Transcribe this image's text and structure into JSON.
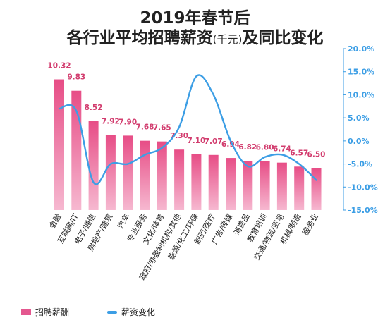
{
  "chart_data": {
    "type": "bar",
    "title": "2019年春节后",
    "subtitle_main": "各行业平均招聘薪资",
    "subtitle_unit": "(千元)",
    "subtitle_tail": "及同比变化",
    "categories": [
      "金融",
      "互联网/IT",
      "电子/通信",
      "房地产/建筑",
      "汽车",
      "专业服务",
      "文化/体育",
      "政府/非盈利机构/其他",
      "能源/化工/环保",
      "制药/医疗",
      "广告/传媒",
      "消费品",
      "教育培训",
      "交通/物流/贸易",
      "机械/制造",
      "服务业"
    ],
    "series": [
      {
        "name": "招聘薪酬",
        "axis": "left",
        "type": "bar",
        "values": [
          10.32,
          9.83,
          8.52,
          7.92,
          7.9,
          7.68,
          7.65,
          7.3,
          7.1,
          7.07,
          6.94,
          6.82,
          6.8,
          6.74,
          6.57,
          6.5
        ],
        "labels": [
          "10.32",
          "9.83",
          "8.52",
          "7.92",
          "7.90",
          "7.68",
          "7.65",
          "7.30",
          "7.10",
          "7.07",
          "6.94",
          "6.82",
          "6.80",
          "6.74",
          "6.57",
          "6.50"
        ]
      },
      {
        "name": "薪资变化",
        "axis": "right",
        "type": "line",
        "values": [
          7.0,
          6.5,
          -9.0,
          -5.0,
          -5.0,
          -3.0,
          -1.5,
          3.0,
          14.0,
          10.0,
          0.0,
          -5.5,
          -3.5,
          -3.0,
          -5.0,
          -8.5
        ]
      }
    ],
    "y_right": {
      "ylim": [
        -15,
        20
      ],
      "ticks": [
        20,
        15,
        10,
        5,
        0,
        -5,
        -10,
        -15
      ],
      "tick_labels": [
        "20.0%",
        "15.0%",
        "10.0%",
        "5.0%",
        "0.0%",
        "-5.0%",
        "-10.0%",
        "-15.0%"
      ]
    },
    "grid": false,
    "legend_position": "bottom-left"
  },
  "colors": {
    "bar_top": "#e74d86",
    "bar_bottom": "#f6b8d0",
    "line": "#3c9ee5",
    "right_axis": "#3c9ee5",
    "label": "#d23c6e"
  }
}
